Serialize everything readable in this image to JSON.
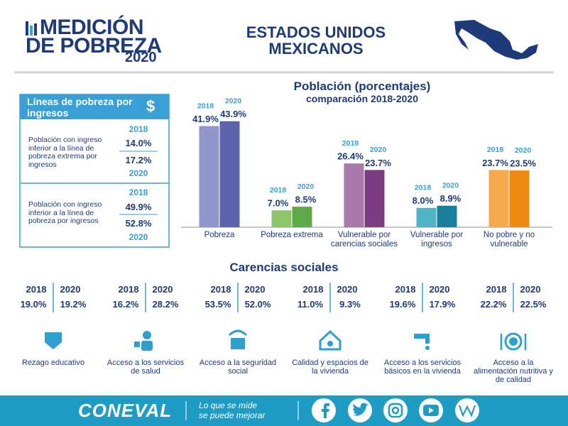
{
  "header": {
    "title_line1": "MEDICIÓN",
    "title_line2": "DE POBREZA",
    "year": "2020",
    "region_line1": "ESTADOS UNIDOS",
    "region_line2": "MEXICANOS"
  },
  "poverty_lines": {
    "title": "Líneas de pobreza por ingresos",
    "symbol": "$",
    "items": [
      {
        "label": "Población con ingreso inferior a la línea de pobreza extrema por ingresos",
        "year_a": "2018",
        "value_a": "14.0%",
        "value_b": "17.2%",
        "year_b": "2020"
      },
      {
        "label": "Población con ingreso inferior a la línea de pobreza por ingresos",
        "year_a": "2018",
        "value_a": "49.9%",
        "value_b": "52.8%",
        "year_b": "2020"
      }
    ]
  },
  "chart_data": {
    "type": "bar",
    "title": "Población (porcentajes)",
    "subtitle": "comparación 2018-2020",
    "categories": [
      "Pobreza",
      "Pobreza extrema",
      "Vulnerable por carencias sociales",
      "Vulnerable por ingresos",
      "No pobre y no vulnerable"
    ],
    "series": [
      {
        "name": "2018",
        "values": [
          41.9,
          7.0,
          26.4,
          8.0,
          23.7
        ],
        "value_labels": [
          "41.9%",
          "7.0%",
          "26.4%",
          "8.0%",
          "23.7%"
        ],
        "colors": [
          "#9196cb",
          "#8fc66c",
          "#a97aa9",
          "#4fb4c6",
          "#f6aa4c"
        ]
      },
      {
        "name": "2020",
        "values": [
          43.9,
          8.5,
          23.7,
          8.9,
          23.5
        ],
        "value_labels": [
          "43.9%",
          "8.5%",
          "23.7%",
          "8.9%",
          "23.5%"
        ],
        "colors": [
          "#5c64ae",
          "#5fa94b",
          "#7d3c80",
          "#1a7d99",
          "#ef8a12"
        ]
      }
    ]
  },
  "social_deprivations": {
    "title": "Carencias sociales",
    "year_a": "2018",
    "year_b": "2020",
    "items": [
      {
        "label": "Rezago educativo",
        "value_a": "19.0%",
        "value_b": "19.2%"
      },
      {
        "label": "Acceso a los servicios de salud",
        "value_a": "16.2%",
        "value_b": "28.2%"
      },
      {
        "label": "Acceso a la seguridad social",
        "value_a": "53.5%",
        "value_b": "52.0%"
      },
      {
        "label": "Calidad y espacios de la vivienda",
        "value_a": "11.0%",
        "value_b": "9.3%"
      },
      {
        "label": "Acceso a los servicios básicos en la vivienda",
        "value_a": "19.6%",
        "value_b": "17.9%"
      },
      {
        "label": "Acceso a la alimentación nutritiva y de calidad",
        "value_a": "22.2%",
        "value_b": "22.5%"
      }
    ]
  },
  "footer": {
    "logo": "CONEVAL",
    "slogan_line1": "Lo que se mide",
    "slogan_line2": "se puede mejorar"
  }
}
